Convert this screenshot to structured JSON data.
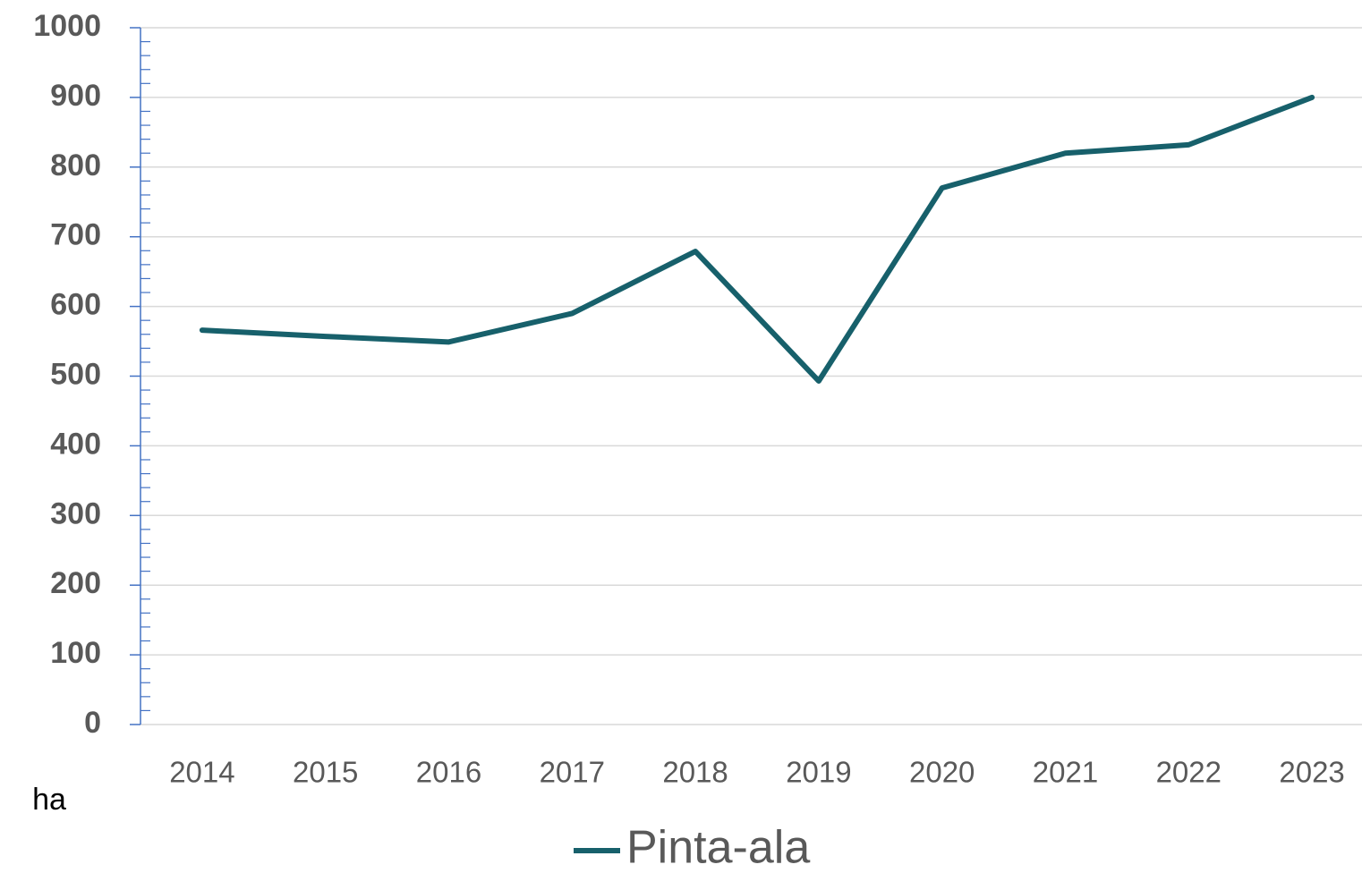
{
  "chart_data": {
    "type": "line",
    "unit_label": "ha",
    "categories": [
      "2014",
      "2015",
      "2016",
      "2017",
      "2018",
      "2019",
      "2020",
      "2021",
      "2022",
      "2023"
    ],
    "series": [
      {
        "name": "Pinta-ala",
        "color": "#17606b",
        "values": [
          566,
          557,
          549,
          590,
          679,
          493,
          770,
          820,
          832,
          900
        ]
      }
    ],
    "ylim": [
      0,
      1000
    ],
    "yticks": [
      0,
      100,
      200,
      300,
      400,
      500,
      600,
      700,
      800,
      900,
      1000
    ],
    "minor_yticks": [
      20,
      40,
      60,
      80,
      120,
      140,
      160,
      180,
      220,
      240,
      260,
      280,
      320,
      340,
      360,
      380,
      420,
      440,
      460,
      480,
      520,
      540,
      560,
      580,
      620,
      640,
      660,
      680,
      720,
      740,
      760,
      780,
      820,
      840,
      860,
      880,
      920,
      940,
      960,
      980
    ],
    "grid": true,
    "legend": "bottom",
    "axis_color": "#4472c4"
  }
}
